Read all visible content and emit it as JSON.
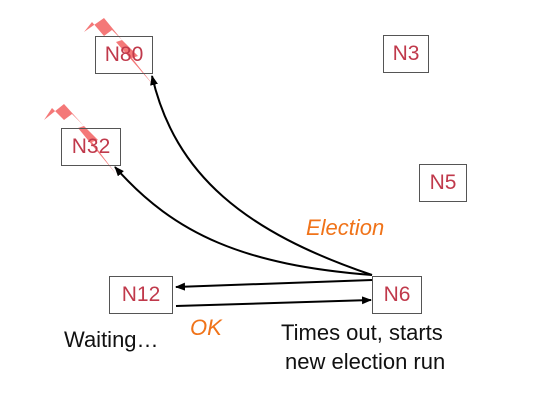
{
  "nodes": {
    "n80": "N80",
    "n3": "N3",
    "n32": "N32",
    "n5": "N5",
    "n12": "N12",
    "n6": "N6"
  },
  "labels": {
    "election": "Election",
    "ok": "OK",
    "waiting": "Waiting…",
    "timeout_line1": "Times out, starts",
    "timeout_line2": "new election run"
  },
  "colors": {
    "node_text": "#c0394b",
    "node_border": "#555555",
    "message_label": "#f07319",
    "crash_mark": "#f25a5a"
  },
  "icons": [
    "lightning-bolt-icon"
  ]
}
